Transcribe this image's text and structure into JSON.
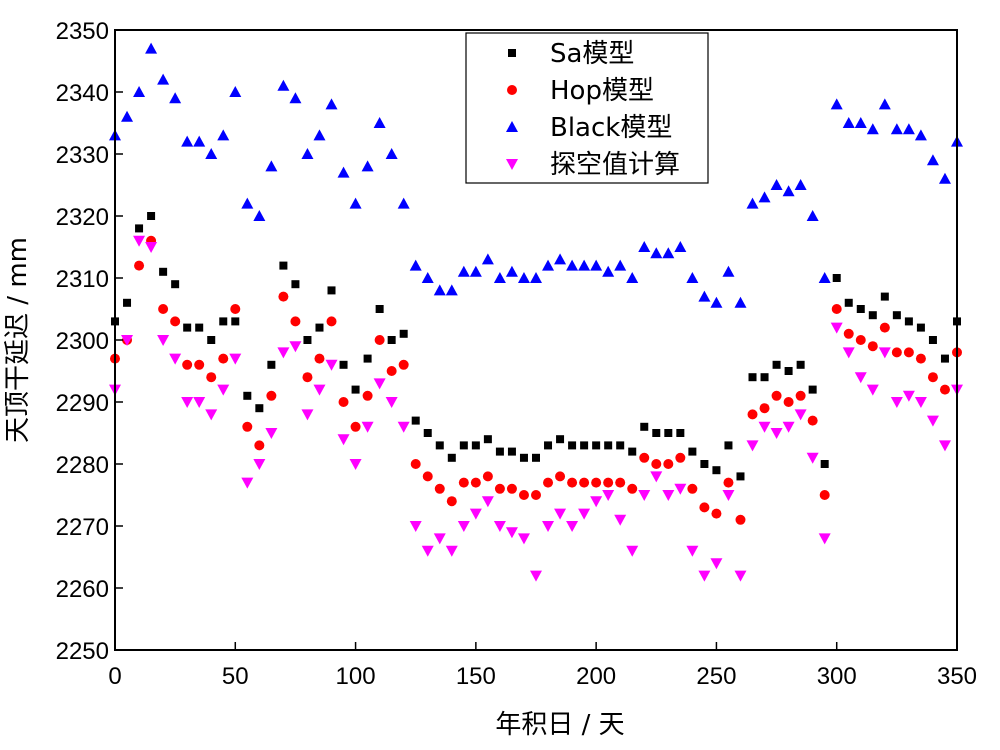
{
  "chart_data": {
    "type": "scatter",
    "title": "",
    "xlabel": "年积日 / 天",
    "ylabel": "天顶干延迟 / mm",
    "xlim": [
      0,
      350
    ],
    "ylim": [
      2250,
      2350
    ],
    "xticks": [
      "0",
      "50",
      "100",
      "150",
      "200",
      "250",
      "300",
      "350"
    ],
    "yticks": [
      "2250",
      "2260",
      "2270",
      "2280",
      "2290",
      "2300",
      "2310",
      "2320",
      "2330",
      "2340",
      "2350"
    ],
    "grid": false,
    "legend_position": "top-center",
    "series": [
      {
        "name": "Sa模型",
        "color": "#000000",
        "marker": "square",
        "x": [
          0,
          5,
          10,
          15,
          20,
          25,
          30,
          35,
          40,
          45,
          50,
          55,
          60,
          65,
          70,
          75,
          80,
          85,
          90,
          95,
          100,
          105,
          110,
          115,
          120,
          125,
          130,
          135,
          140,
          145,
          150,
          155,
          160,
          165,
          170,
          175,
          180,
          185,
          190,
          195,
          200,
          205,
          210,
          215,
          220,
          225,
          230,
          235,
          240,
          245,
          250,
          255,
          260,
          265,
          270,
          275,
          280,
          285,
          290,
          295,
          300,
          305,
          310,
          315,
          320,
          325,
          330,
          335,
          340,
          345,
          350
        ],
        "y": [
          2303,
          2306,
          2318,
          2320,
          2311,
          2309,
          2302,
          2302,
          2300,
          2303,
          2303,
          2291,
          2289,
          2296,
          2312,
          2309,
          2300,
          2302,
          2308,
          2296,
          2292,
          2297,
          2305,
          2300,
          2301,
          2287,
          2285,
          2283,
          2281,
          2283,
          2283,
          2284,
          2282,
          2282,
          2281,
          2281,
          2283,
          2284,
          2283,
          2283,
          2283,
          2283,
          2283,
          2282,
          2286,
          2285,
          2285,
          2285,
          2282,
          2280,
          2279,
          2283,
          2278,
          2294,
          2294,
          2296,
          2295,
          2296,
          2292,
          2280,
          2310,
          2306,
          2305,
          2304,
          2307,
          2304,
          2303,
          2302,
          2300,
          2297,
          2303
        ]
      },
      {
        "name": "Hop模型",
        "color": "#ff0000",
        "marker": "circle",
        "x": [
          0,
          5,
          10,
          15,
          20,
          25,
          30,
          35,
          40,
          45,
          50,
          55,
          60,
          65,
          70,
          75,
          80,
          85,
          90,
          95,
          100,
          105,
          110,
          115,
          120,
          125,
          130,
          135,
          140,
          145,
          150,
          155,
          160,
          165,
          170,
          175,
          180,
          185,
          190,
          195,
          200,
          205,
          210,
          215,
          220,
          225,
          230,
          235,
          240,
          245,
          250,
          255,
          260,
          265,
          270,
          275,
          280,
          285,
          290,
          295,
          300,
          305,
          310,
          315,
          320,
          325,
          330,
          335,
          340,
          345,
          350
        ],
        "y": [
          2297,
          2300,
          2312,
          2316,
          2305,
          2303,
          2296,
          2296,
          2294,
          2297,
          2305,
          2286,
          2283,
          2291,
          2307,
          2303,
          2294,
          2297,
          2303,
          2290,
          2286,
          2291,
          2300,
          2295,
          2296,
          2280,
          2278,
          2276,
          2274,
          2277,
          2277,
          2278,
          2276,
          2276,
          2275,
          2275,
          2277,
          2278,
          2277,
          2277,
          2277,
          2277,
          2277,
          2276,
          2281,
          2280,
          2280,
          2281,
          2276,
          2273,
          2272,
          2277,
          2271,
          2288,
          2289,
          2291,
          2290,
          2291,
          2287,
          2275,
          2305,
          2301,
          2300,
          2299,
          2302,
          2298,
          2298,
          2297,
          2294,
          2292,
          2298
        ]
      },
      {
        "name": "Black模型",
        "color": "#0000ff",
        "marker": "triangle-up",
        "x": [
          0,
          5,
          10,
          15,
          20,
          25,
          30,
          35,
          40,
          45,
          50,
          55,
          60,
          65,
          70,
          75,
          80,
          85,
          90,
          95,
          100,
          105,
          110,
          115,
          120,
          125,
          130,
          135,
          140,
          145,
          150,
          155,
          160,
          165,
          170,
          175,
          180,
          185,
          190,
          195,
          200,
          205,
          210,
          215,
          220,
          225,
          230,
          235,
          240,
          245,
          250,
          255,
          260,
          265,
          270,
          275,
          280,
          285,
          290,
          295,
          300,
          305,
          310,
          315,
          320,
          325,
          330,
          335,
          340,
          345,
          350
        ],
        "y": [
          2333,
          2336,
          2340,
          2347,
          2342,
          2339,
          2332,
          2332,
          2330,
          2333,
          2340,
          2322,
          2320,
          2328,
          2341,
          2339,
          2330,
          2333,
          2338,
          2327,
          2322,
          2328,
          2335,
          2330,
          2322,
          2312,
          2310,
          2308,
          2308,
          2311,
          2311,
          2313,
          2310,
          2311,
          2310,
          2310,
          2312,
          2313,
          2312,
          2312,
          2312,
          2311,
          2312,
          2310,
          2315,
          2314,
          2314,
          2315,
          2310,
          2307,
          2306,
          2311,
          2306,
          2322,
          2323,
          2325,
          2324,
          2325,
          2320,
          2310,
          2338,
          2335,
          2335,
          2334,
          2338,
          2334,
          2334,
          2333,
          2329,
          2326,
          2332
        ]
      },
      {
        "name": "探空值计算",
        "color": "#ff00ff",
        "marker": "triangle-down",
        "x": [
          0,
          5,
          10,
          15,
          20,
          25,
          30,
          35,
          40,
          45,
          50,
          55,
          60,
          65,
          70,
          75,
          80,
          85,
          90,
          95,
          100,
          105,
          110,
          115,
          120,
          125,
          130,
          135,
          140,
          145,
          150,
          155,
          160,
          165,
          170,
          175,
          180,
          185,
          190,
          195,
          200,
          205,
          210,
          215,
          220,
          225,
          230,
          235,
          240,
          245,
          250,
          255,
          260,
          265,
          270,
          275,
          280,
          285,
          290,
          295,
          300,
          305,
          310,
          315,
          320,
          325,
          330,
          335,
          340,
          345,
          350
        ],
        "y": [
          2292,
          2300,
          2316,
          2315,
          2300,
          2297,
          2290,
          2290,
          2288,
          2292,
          2297,
          2277,
          2280,
          2285,
          2298,
          2299,
          2288,
          2292,
          2296,
          2284,
          2280,
          2286,
          2293,
          2290,
          2286,
          2270,
          2266,
          2268,
          2266,
          2270,
          2272,
          2274,
          2270,
          2269,
          2268,
          2262,
          2270,
          2272,
          2270,
          2272,
          2274,
          2275,
          2271,
          2266,
          2275,
          2278,
          2275,
          2276,
          2266,
          2262,
          2264,
          2275,
          2262,
          2283,
          2286,
          2285,
          2286,
          2288,
          2281,
          2268,
          2302,
          2298,
          2294,
          2292,
          2298,
          2290,
          2291,
          2290,
          2287,
          2283,
          2292
        ]
      }
    ]
  }
}
